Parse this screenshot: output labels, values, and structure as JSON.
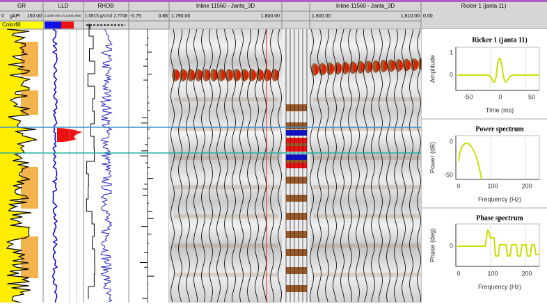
{
  "tracks": [
    {
      "name": "GR",
      "scale": [
        "0",
        "gAPI",
        "150.00"
      ]
    },
    {
      "name": "LLD",
      "scale": [
        "0.1000 ohm.m 1,000.0000"
      ]
    },
    {
      "name": "RHOB",
      "scale": [
        "1.5815 g/cm3 2.7748"
      ]
    },
    {
      "scale": [
        "-0.75",
        "0.88"
      ]
    }
  ],
  "legend": {
    "colorfill": "Colorfill"
  },
  "seismic": [
    {
      "title": "Inline 11560 - Janta_3D",
      "scale": [
        "1,790.00",
        "1,800.00"
      ]
    },
    {
      "title": "Inline 11560 - Janta_3D",
      "scale": [
        "1,800.00",
        "1,810.00"
      ]
    }
  ],
  "wavelet": {
    "title": "Ricker 1 (janta 11)",
    "scale": "0.00"
  },
  "panels": [
    {
      "title": "Ricker 1 (janta 11)",
      "ylabel": "Amplitude",
      "xlabel": "Time (ms)",
      "yticks": [
        "1",
        "0"
      ],
      "xticks": [
        "-50",
        "0",
        "50"
      ]
    },
    {
      "title": "Power spectrum",
      "ylabel": "Power (dB)",
      "xlabel": "Frequency (Hz)",
      "yticks": [
        "0",
        "-50"
      ],
      "xticks": [
        "0",
        "100",
        "200"
      ]
    },
    {
      "title": "Phase spectrum",
      "ylabel": "Phase (deg)",
      "xlabel": "Frequency (Hz)",
      "yticks": [
        "0"
      ],
      "xticks": [
        "0",
        "100",
        "200"
      ]
    }
  ]
}
